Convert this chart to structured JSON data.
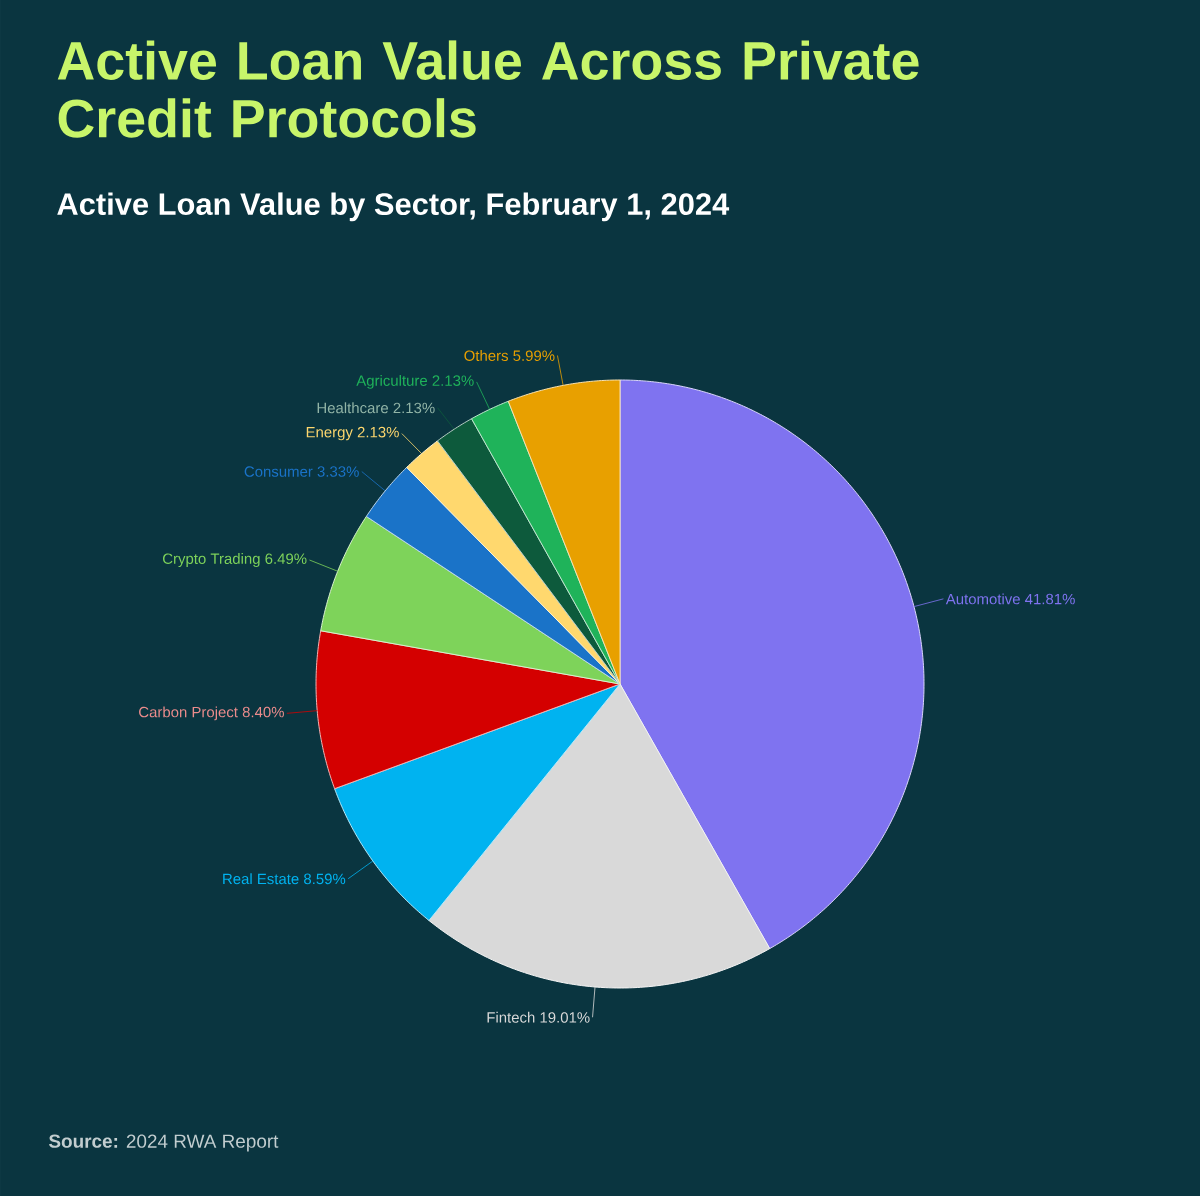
{
  "chart_data": {
    "type": "pie",
    "title": "Active Loan Value Across Private Credit Protocols",
    "subtitle": "Active Loan Value by Sector, February 1, 2024",
    "categories": [
      "Automotive",
      "Fintech",
      "Real Estate",
      "Carbon Project",
      "Crypto Trading",
      "Consumer",
      "Energy",
      "Healthcare",
      "Agriculture",
      "Others"
    ],
    "values": [
      41.81,
      19.01,
      8.59,
      8.4,
      6.49,
      3.33,
      2.13,
      2.13,
      2.13,
      5.99
    ],
    "value_labels": [
      "41.81%",
      "19.01%",
      "8.59%",
      "8.40%",
      "6.49%",
      "3.33%",
      "2.13%",
      "2.13%",
      "2.13%",
      "5.99%"
    ],
    "colors": [
      "#7f73f0",
      "#d9d9d9",
      "#00b3f0",
      "#d40000",
      "#7ed35a",
      "#1a73c8",
      "#ffd86e",
      "#0d5a3c",
      "#1fb35a",
      "#e8a000"
    ],
    "annotations": [
      "**Source:** 2024 RWA Report"
    ]
  }
}
